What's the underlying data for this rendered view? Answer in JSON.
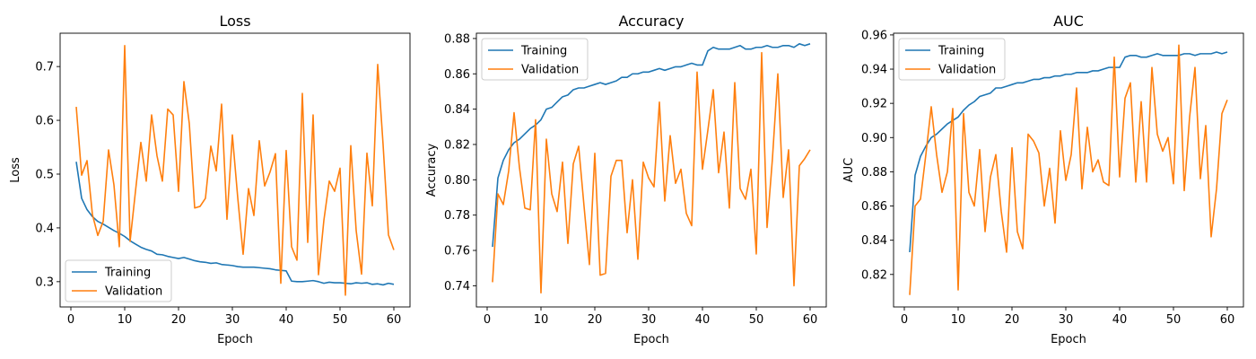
{
  "chart_data": [
    {
      "type": "line",
      "title": "Loss",
      "xlabel": "Epoch",
      "ylabel": "Loss",
      "xlim": [
        -2,
        63
      ],
      "ylim": [
        0.253,
        0.762
      ],
      "xticks": [
        "0",
        "10",
        "20",
        "30",
        "40",
        "50",
        "60"
      ],
      "yticks": [
        "0.3",
        "0.4",
        "0.5",
        "0.6",
        "0.7"
      ],
      "legend": "lower-left",
      "x": [
        1,
        2,
        3,
        4,
        5,
        6,
        7,
        8,
        9,
        10,
        11,
        12,
        13,
        14,
        15,
        16,
        17,
        18,
        19,
        20,
        21,
        22,
        23,
        24,
        25,
        26,
        27,
        28,
        29,
        30,
        31,
        32,
        33,
        34,
        35,
        36,
        37,
        38,
        39,
        40,
        41,
        42,
        43,
        44,
        45,
        46,
        47,
        48,
        49,
        50,
        51,
        52,
        53,
        54,
        55,
        56,
        57,
        58,
        59,
        60
      ],
      "series": [
        {
          "name": "Training",
          "color": "#1f77b4",
          "values": [
            0.523,
            0.455,
            0.434,
            0.421,
            0.412,
            0.407,
            0.401,
            0.395,
            0.39,
            0.384,
            0.376,
            0.37,
            0.364,
            0.36,
            0.357,
            0.351,
            0.35,
            0.347,
            0.345,
            0.343,
            0.345,
            0.342,
            0.339,
            0.337,
            0.336,
            0.334,
            0.335,
            0.332,
            0.331,
            0.33,
            0.328,
            0.327,
            0.327,
            0.327,
            0.326,
            0.325,
            0.324,
            0.322,
            0.321,
            0.32,
            0.301,
            0.3,
            0.3,
            0.301,
            0.302,
            0.3,
            0.297,
            0.299,
            0.298,
            0.298,
            0.297,
            0.296,
            0.298,
            0.297,
            0.298,
            0.295,
            0.296,
            0.294,
            0.297,
            0.295
          ]
        },
        {
          "name": "Validation",
          "color": "#ff7f0e",
          "values": [
            0.625,
            0.498,
            0.525,
            0.425,
            0.386,
            0.412,
            0.545,
            0.48,
            0.365,
            0.739,
            0.375,
            0.468,
            0.559,
            0.487,
            0.61,
            0.534,
            0.487,
            0.621,
            0.61,
            0.468,
            0.672,
            0.594,
            0.437,
            0.44,
            0.455,
            0.552,
            0.506,
            0.63,
            0.416,
            0.573,
            0.456,
            0.351,
            0.473,
            0.423,
            0.562,
            0.478,
            0.504,
            0.538,
            0.297,
            0.544,
            0.365,
            0.34,
            0.65,
            0.373,
            0.61,
            0.313,
            0.414,
            0.487,
            0.468,
            0.511,
            0.275,
            0.553,
            0.395,
            0.314,
            0.539,
            0.441,
            0.704,
            0.555,
            0.387,
            0.359
          ]
        }
      ]
    },
    {
      "type": "line",
      "title": "Accuracy",
      "xlabel": "Epoch",
      "ylabel": "Accuracy",
      "xlim": [
        -2,
        63
      ],
      "ylim": [
        0.728,
        0.883
      ],
      "xticks": [
        "0",
        "10",
        "20",
        "30",
        "40",
        "50",
        "60"
      ],
      "yticks": [
        "0.74",
        "0.76",
        "0.78",
        "0.80",
        "0.82",
        "0.84",
        "0.86",
        "0.88"
      ],
      "legend": "upper-left",
      "x": [
        1,
        2,
        3,
        4,
        5,
        6,
        7,
        8,
        9,
        10,
        11,
        12,
        13,
        14,
        15,
        16,
        17,
        18,
        19,
        20,
        21,
        22,
        23,
        24,
        25,
        26,
        27,
        28,
        29,
        30,
        31,
        32,
        33,
        34,
        35,
        36,
        37,
        38,
        39,
        40,
        41,
        42,
        43,
        44,
        45,
        46,
        47,
        48,
        49,
        50,
        51,
        52,
        53,
        54,
        55,
        56,
        57,
        58,
        59,
        60
      ],
      "series": [
        {
          "name": "Training",
          "color": "#1f77b4",
          "values": [
            0.762,
            0.801,
            0.811,
            0.817,
            0.821,
            0.823,
            0.826,
            0.829,
            0.831,
            0.834,
            0.84,
            0.841,
            0.844,
            0.847,
            0.848,
            0.851,
            0.852,
            0.852,
            0.853,
            0.854,
            0.855,
            0.854,
            0.855,
            0.856,
            0.858,
            0.858,
            0.86,
            0.86,
            0.861,
            0.861,
            0.862,
            0.863,
            0.862,
            0.863,
            0.864,
            0.864,
            0.865,
            0.866,
            0.865,
            0.865,
            0.873,
            0.875,
            0.874,
            0.874,
            0.874,
            0.875,
            0.876,
            0.874,
            0.874,
            0.875,
            0.875,
            0.876,
            0.875,
            0.875,
            0.876,
            0.876,
            0.875,
            0.877,
            0.876,
            0.877
          ]
        },
        {
          "name": "Validation",
          "color": "#ff7f0e",
          "values": [
            0.742,
            0.792,
            0.786,
            0.805,
            0.838,
            0.807,
            0.784,
            0.783,
            0.834,
            0.736,
            0.823,
            0.792,
            0.782,
            0.81,
            0.764,
            0.809,
            0.819,
            0.785,
            0.752,
            0.815,
            0.746,
            0.747,
            0.802,
            0.811,
            0.811,
            0.77,
            0.8,
            0.755,
            0.81,
            0.801,
            0.796,
            0.844,
            0.788,
            0.825,
            0.798,
            0.806,
            0.781,
            0.774,
            0.861,
            0.806,
            0.828,
            0.851,
            0.804,
            0.827,
            0.784,
            0.855,
            0.795,
            0.789,
            0.806,
            0.758,
            0.872,
            0.773,
            0.812,
            0.86,
            0.79,
            0.817,
            0.74,
            0.808,
            0.812,
            0.817
          ]
        }
      ]
    },
    {
      "type": "line",
      "title": "AUC",
      "xlabel": "Epoch",
      "ylabel": "AUC",
      "xlim": [
        -2,
        63
      ],
      "ylim": [
        0.801,
        0.961
      ],
      "xticks": [
        "0",
        "10",
        "20",
        "30",
        "40",
        "50",
        "60"
      ],
      "yticks": [
        "0.82",
        "0.84",
        "0.86",
        "0.88",
        "0.90",
        "0.92",
        "0.94",
        "0.96"
      ],
      "legend": "upper-left",
      "x": [
        1,
        2,
        3,
        4,
        5,
        6,
        7,
        8,
        9,
        10,
        11,
        12,
        13,
        14,
        15,
        16,
        17,
        18,
        19,
        20,
        21,
        22,
        23,
        24,
        25,
        26,
        27,
        28,
        29,
        30,
        31,
        32,
        33,
        34,
        35,
        36,
        37,
        38,
        39,
        40,
        41,
        42,
        43,
        44,
        45,
        46,
        47,
        48,
        49,
        50,
        51,
        52,
        53,
        54,
        55,
        56,
        57,
        58,
        59,
        60
      ],
      "series": [
        {
          "name": "Training",
          "color": "#1f77b4",
          "values": [
            0.833,
            0.878,
            0.889,
            0.895,
            0.9,
            0.902,
            0.905,
            0.908,
            0.91,
            0.912,
            0.916,
            0.919,
            0.921,
            0.924,
            0.925,
            0.926,
            0.929,
            0.929,
            0.93,
            0.931,
            0.932,
            0.932,
            0.933,
            0.934,
            0.934,
            0.935,
            0.935,
            0.936,
            0.936,
            0.937,
            0.937,
            0.938,
            0.938,
            0.938,
            0.939,
            0.939,
            0.94,
            0.941,
            0.941,
            0.941,
            0.947,
            0.948,
            0.948,
            0.947,
            0.947,
            0.948,
            0.949,
            0.948,
            0.948,
            0.948,
            0.948,
            0.949,
            0.949,
            0.948,
            0.949,
            0.949,
            0.949,
            0.95,
            0.949,
            0.95
          ]
        },
        {
          "name": "Validation",
          "color": "#ff7f0e",
          "values": [
            0.808,
            0.86,
            0.864,
            0.89,
            0.918,
            0.89,
            0.868,
            0.88,
            0.917,
            0.811,
            0.914,
            0.868,
            0.86,
            0.893,
            0.845,
            0.877,
            0.89,
            0.857,
            0.833,
            0.894,
            0.845,
            0.835,
            0.902,
            0.898,
            0.891,
            0.86,
            0.882,
            0.85,
            0.904,
            0.875,
            0.89,
            0.929,
            0.87,
            0.906,
            0.88,
            0.887,
            0.874,
            0.872,
            0.947,
            0.877,
            0.923,
            0.932,
            0.874,
            0.921,
            0.874,
            0.941,
            0.902,
            0.892,
            0.9,
            0.873,
            0.954,
            0.869,
            0.912,
            0.941,
            0.876,
            0.907,
            0.842,
            0.87,
            0.914,
            0.922
          ]
        }
      ]
    }
  ]
}
